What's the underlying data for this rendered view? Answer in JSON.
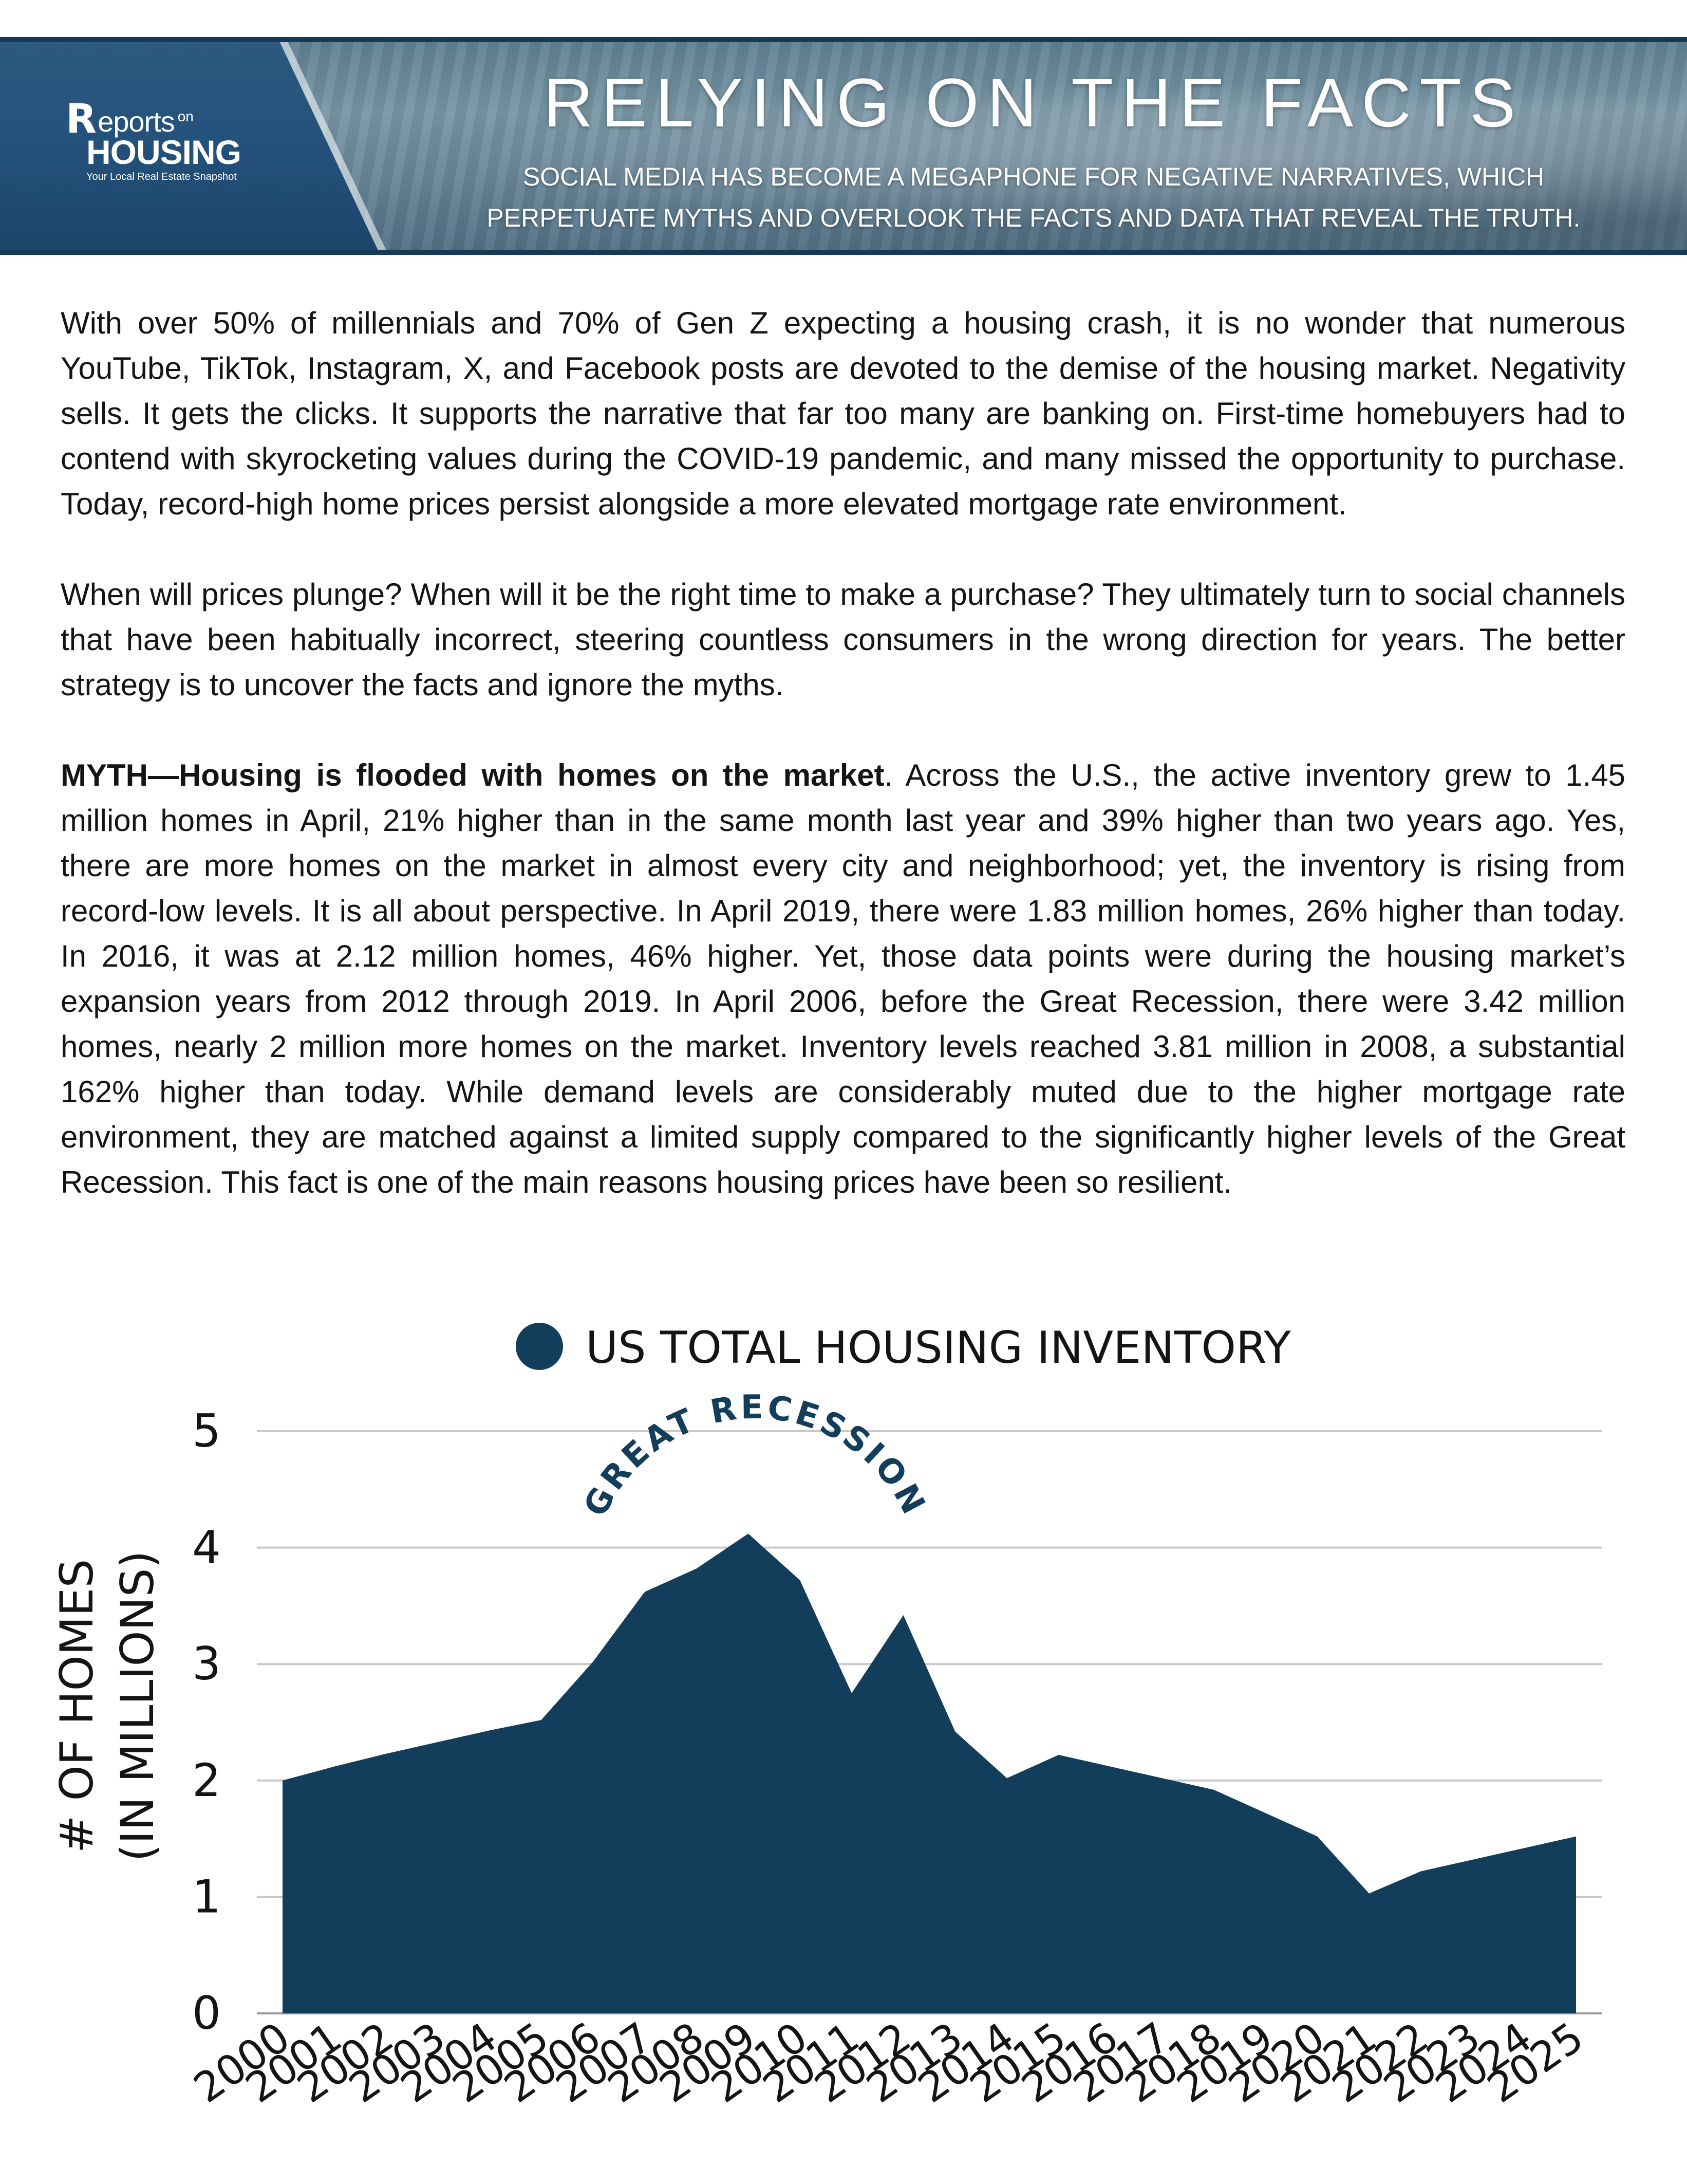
{
  "header": {
    "logo": {
      "brand_prefix": "eports",
      "brand_on": "on",
      "brand_main": "HOUSING",
      "tagline": "Your Local Real Estate Snapshot"
    },
    "title": "RELYING ON THE FACTS",
    "subtitle_line1": "SOCIAL MEDIA HAS BECOME A MEGAPHONE FOR NEGATIVE NARRATIVES, WHICH",
    "subtitle_line2": "PERPETUATE MYTHS AND OVERLOOK THE FACTS AND DATA THAT REVEAL THE TRUTH."
  },
  "article": {
    "paragraph1": "With over 50% of millennials and 70% of Gen Z expecting a housing crash, it is no wonder that numerous YouTube, TikTok, Instagram, X, and Facebook posts are devoted to the demise of the housing market. Negativity sells. It gets the clicks. It supports the narrative that far too many are banking on. First-time homebuyers had to contend with skyrocketing values during the COVID-19 pandemic, and many missed the opportunity to purchase. Today, record-high home prices persist alongside a more elevated mortgage rate environment.",
    "paragraph2": "When will prices plunge? When will it be the right time to make a purchase? They ultimately turn to social channels that have been habitually incorrect, steering countless consumers in the wrong direction for years. The better strategy is to uncover the facts and ignore the myths.",
    "paragraph3_lead": "MYTH—Housing is flooded with homes on the market",
    "paragraph3_body": ". Across the U.S., the active inventory grew to 1.45 million homes in April, 21% higher than in the same month last year and 39% higher than two years ago. Yes, there are more homes on the market in almost every city and neighborhood; yet, the inventory is rising from record-low levels. It is all about perspective. In April 2019, there were 1.83 million homes, 26% higher than today. In 2016, it was at 2.12 million homes, 46% higher. Yet, those data points were during the housing market’s expansion years from 2012 through 2019. In April 2006, before the Great Recession, there were 3.42 million homes, nearly 2 million more homes on the market. Inventory levels reached 3.81 million in 2008, a substantial 162% higher than today. While demand levels are considerably muted due to the higher mortgage rate environment, they are matched against a limited supply compared to the significantly higher levels of the Great Recession. This fact is one of the main reasons housing prices have been so resilient."
  },
  "colors": {
    "navy": "#123d5b",
    "grid": "#c8c8c8",
    "text": "#141414"
  },
  "chart_data": {
    "type": "area",
    "title": "US TOTAL HOUSING INVENTORY",
    "legend_position": "top",
    "legend_marker": "circle",
    "ylabel_line1": "# OF HOMES",
    "ylabel_line2": "(IN MILLIONS)",
    "xlabel": "",
    "ylim": [
      0,
      5
    ],
    "yticks": [
      "0",
      "1",
      "2",
      "3",
      "4",
      "5"
    ],
    "grid": true,
    "annotation": "GREAT RECESSION",
    "x": [
      "2000",
      "2001",
      "2002",
      "2003",
      "2004",
      "2005",
      "2006",
      "2007",
      "2008",
      "2009",
      "2010",
      "2011",
      "2012",
      "2013",
      "2014",
      "2015",
      "2016",
      "2017",
      "2018",
      "2019",
      "2020",
      "2021",
      "2022",
      "2023",
      "2024",
      "2025"
    ],
    "series": [
      {
        "values": [
          2.0,
          2.12,
          2.23,
          2.33,
          2.43,
          2.52,
          3.02,
          3.62,
          3.82,
          4.12,
          3.72,
          2.75,
          3.42,
          2.42,
          2.02,
          2.22,
          2.12,
          2.02,
          1.92,
          1.72,
          1.52,
          1.03,
          1.22,
          1.32,
          1.42,
          1.52
        ]
      }
    ]
  }
}
